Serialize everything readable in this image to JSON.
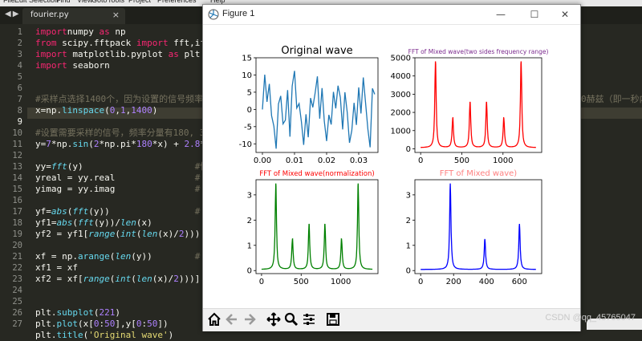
{
  "editor": {
    "menu": [
      "File",
      "Edit",
      "Selection",
      "Find",
      "View",
      "Goto",
      "Tools",
      "Project",
      "Preferences",
      "Help"
    ],
    "tab_name": "fourier.py",
    "tab_close": "×",
    "line_numbers": [
      "1",
      "2",
      "3",
      "4",
      "5",
      "6",
      "7",
      "8",
      "9",
      "10",
      "11",
      "12",
      "13",
      "14",
      "15",
      "16",
      "17",
      "18",
      "19",
      "20",
      "21",
      "22",
      "23",
      "24",
      "25",
      "26",
      "27"
    ],
    "current_line": "9",
    "code_lines": [
      [
        [
          "kw",
          "import"
        ],
        [
          "",
          "numpy "
        ],
        [
          "kw",
          "as"
        ],
        [
          "",
          " np"
        ]
      ],
      [
        [
          "kw",
          "from"
        ],
        [
          "",
          " scipy.fftpack "
        ],
        [
          "kw",
          "import"
        ],
        [
          "",
          " fft,ifft"
        ]
      ],
      [
        [
          "kw",
          "import"
        ],
        [
          "",
          " matplotlib.pyplot "
        ],
        [
          "kw",
          "as"
        ],
        [
          "",
          " plt"
        ]
      ],
      [
        [
          "kw",
          "import"
        ],
        [
          "",
          " seaborn"
        ]
      ],
      [],
      [],
      [
        [
          "cm",
          "#采样点选择1400个，因为设置的信号频率"
        ]
      ],
      [
        [
          "",
          "x=np."
        ],
        [
          "fn",
          "linspace"
        ],
        [
          "",
          "("
        ],
        [
          "num",
          "0"
        ],
        [
          "",
          ","
        ],
        [
          "num",
          "1"
        ],
        [
          "",
          ","
        ],
        [
          "num",
          "1400"
        ],
        [
          "",
          ")"
        ]
      ],
      [],
      [
        [
          "cm",
          "#设置需要采样的信号，频率分量有180, 3"
        ]
      ],
      [
        [
          "",
          "y="
        ],
        [
          "num",
          "7"
        ],
        [
          "",
          "*np."
        ],
        [
          "fn",
          "sin"
        ],
        [
          "",
          "("
        ],
        [
          "num",
          "2"
        ],
        [
          "",
          "*np.pi*"
        ],
        [
          "num",
          "180"
        ],
        [
          "",
          "*x) + "
        ],
        [
          "num",
          "2.8"
        ],
        [
          "",
          "*np"
        ]
      ],
      [],
      [
        [
          "",
          "yy="
        ],
        [
          "it",
          "fft"
        ],
        [
          "",
          "(y)"
        ],
        [
          "",
          "                     "
        ],
        [
          "cm",
          "#快速"
        ]
      ],
      [
        [
          "",
          "yreal = yy.real"
        ],
        [
          "",
          "               "
        ],
        [
          "cm",
          "# 获取"
        ]
      ],
      [
        [
          "",
          "yimag = yy.imag"
        ],
        [
          "",
          "               "
        ],
        [
          "cm",
          "# 获取"
        ]
      ],
      [],
      [
        [
          "",
          "yf="
        ],
        [
          "it",
          "abs"
        ],
        [
          "",
          "("
        ],
        [
          "it",
          "fft"
        ],
        [
          "",
          "(y))"
        ],
        [
          "",
          "                "
        ],
        [
          "cm",
          "# 取"
        ]
      ],
      [
        [
          "",
          "yf1="
        ],
        [
          "it",
          "abs"
        ],
        [
          "",
          "("
        ],
        [
          "it",
          "fft"
        ],
        [
          "",
          "(y))/"
        ],
        [
          "it",
          "len"
        ],
        [
          "",
          "(x)"
        ],
        [
          "",
          "           "
        ],
        [
          "cm",
          "#"
        ]
      ],
      [
        [
          "",
          "yf2 = yf1["
        ],
        [
          "it",
          "range"
        ],
        [
          "",
          "("
        ],
        [
          "it",
          "int"
        ],
        [
          "",
          "("
        ],
        [
          "it",
          "len"
        ],
        [
          "",
          "(x)/"
        ],
        [
          "num",
          "2"
        ],
        [
          "",
          ")))"
        ],
        [
          "",
          "   "
        ],
        [
          "cm",
          "#"
        ]
      ],
      [],
      [
        [
          "",
          "xf = np."
        ],
        [
          "fn",
          "arange"
        ],
        [
          "",
          "("
        ],
        [
          "it",
          "len"
        ],
        [
          "",
          "(y))"
        ],
        [
          "",
          "        "
        ],
        [
          "cm",
          "# 频"
        ]
      ],
      [
        [
          "",
          "xf1 = xf"
        ]
      ],
      [
        [
          "",
          "xf2 = xf["
        ],
        [
          "it",
          "range"
        ],
        [
          "",
          "("
        ],
        [
          "it",
          "int"
        ],
        [
          "",
          "("
        ],
        [
          "it",
          "len"
        ],
        [
          "",
          "(x)/"
        ],
        [
          "num",
          "2"
        ],
        [
          "",
          ")))]"
        ],
        [
          "",
          "  "
        ],
        [
          "cm",
          "#取"
        ]
      ],
      [],
      [],
      [
        [
          "",
          "plt."
        ],
        [
          "fn",
          "subplot"
        ],
        [
          "",
          "("
        ],
        [
          "num",
          "221"
        ],
        [
          "",
          ")"
        ]
      ],
      [
        [
          "",
          "plt."
        ],
        [
          "fn",
          "plot"
        ],
        [
          "",
          "(x["
        ],
        [
          "num",
          "0"
        ],
        [
          "",
          ":"
        ],
        [
          "num",
          "50"
        ],
        [
          "",
          "],y["
        ],
        [
          "num",
          "0"
        ],
        [
          "",
          ":"
        ],
        [
          "num",
          "50"
        ],
        [
          "",
          "])"
        ]
      ],
      [
        [
          "",
          "plt."
        ],
        [
          "fn",
          "title"
        ],
        [
          "",
          "("
        ],
        [
          "str",
          "'Original wave'"
        ],
        [
          "",
          ")"
        ]
      ]
    ],
    "overflow_text_1": "0赫兹（即一秒内",
    "colors": {
      "keyword": "#f92672",
      "function": "#66d9ef",
      "number": "#ae81ff",
      "string": "#e6db74",
      "comment": "#75715e",
      "text": "#f8f8f2"
    }
  },
  "figure_window": {
    "title": "Figure 1",
    "buttons": {
      "minimize": "—",
      "maximize": "☐",
      "close": "✕"
    },
    "toolbar_icons": [
      "home-icon",
      "back-arrow-icon",
      "forward-arrow-icon",
      "pan-icon",
      "zoom-icon",
      "subplots-config-icon",
      "save-icon"
    ]
  },
  "chart_data": [
    {
      "type": "line",
      "title": "Original wave",
      "title_color": "#000000",
      "color": "#1f77b4",
      "xlim": [
        -0.002,
        0.036
      ],
      "ylim": [
        -12.5,
        15
      ],
      "xticks": [
        0.0,
        0.01,
        0.02,
        0.03
      ],
      "xtick_labels": [
        "0.00",
        "0.01",
        "0.02",
        "0.03"
      ],
      "yticks": [
        -10,
        -5,
        0,
        5,
        10,
        15
      ],
      "yvalues": [
        0.0,
        10.1,
        2.2,
        7.4,
        -1.8,
        -4.9,
        -11.4,
        1.6,
        3.9,
        -4.2,
        -3.1,
        5.6,
        -7.9,
        6.8,
        11.2,
        0.4,
        1.7,
        -3.6,
        -10.3,
        -1.4,
        -8.1,
        3.3,
        0.6,
        4.8,
        9.6,
        -2.7,
        6.2,
        -3.4,
        -9.2,
        -1.6,
        -4.4,
        5.1,
        0.3,
        6.9,
        3.5,
        -5.8,
        5.0,
        -0.9,
        -9.7,
        -6.1,
        1.9,
        -4.5,
        6.4,
        -1.2,
        9.3,
        2.0,
        -5.7,
        -11.0,
        6.1,
        4.4
      ],
      "x_step": 0.000714
    },
    {
      "type": "line",
      "title": "FFT of Mixed wave(two sides frequency range)",
      "title_color": "#7b2a8e",
      "color": "#ff0000",
      "xlim": [
        -70,
        1470
      ],
      "ylim": [
        -200,
        5000
      ],
      "xticks": [
        0,
        500,
        1000
      ],
      "yticks": [
        0,
        1000,
        2000,
        3000,
        4000,
        5000
      ],
      "peaks": [
        [
          180,
          4800
        ],
        [
          390,
          1700
        ],
        [
          600,
          2580
        ],
        [
          800,
          2580
        ],
        [
          1010,
          1700
        ],
        [
          1220,
          4800
        ]
      ],
      "x_max": 1400
    },
    {
      "type": "line",
      "title": "FFT of Mixed wave(normalization)",
      "title_color": "#ff0000",
      "color": "#008000",
      "xlim": [
        -70,
        1470
      ],
      "ylim": [
        -0.12,
        3.6
      ],
      "xticks": [
        0,
        500,
        1000
      ],
      "yticks": [
        0,
        1,
        2,
        3
      ],
      "peaks": [
        [
          180,
          3.45
        ],
        [
          390,
          1.25
        ],
        [
          600,
          1.85
        ],
        [
          800,
          1.85
        ],
        [
          1010,
          1.25
        ],
        [
          1220,
          3.45
        ]
      ],
      "x_max": 1400
    },
    {
      "type": "line",
      "title": "FFT of Mixed wave)",
      "title_color": "#ff8080",
      "color": "#0000ff",
      "xlim": [
        -35,
        735
      ],
      "ylim": [
        -0.12,
        3.6
      ],
      "xticks": [
        0,
        200,
        400,
        600
      ],
      "yticks": [
        0,
        1,
        2,
        3
      ],
      "peaks": [
        [
          180,
          3.45
        ],
        [
          390,
          1.25
        ],
        [
          600,
          1.85
        ]
      ],
      "x_max": 700
    }
  ],
  "watermark": "CSDN @qq_45765047"
}
